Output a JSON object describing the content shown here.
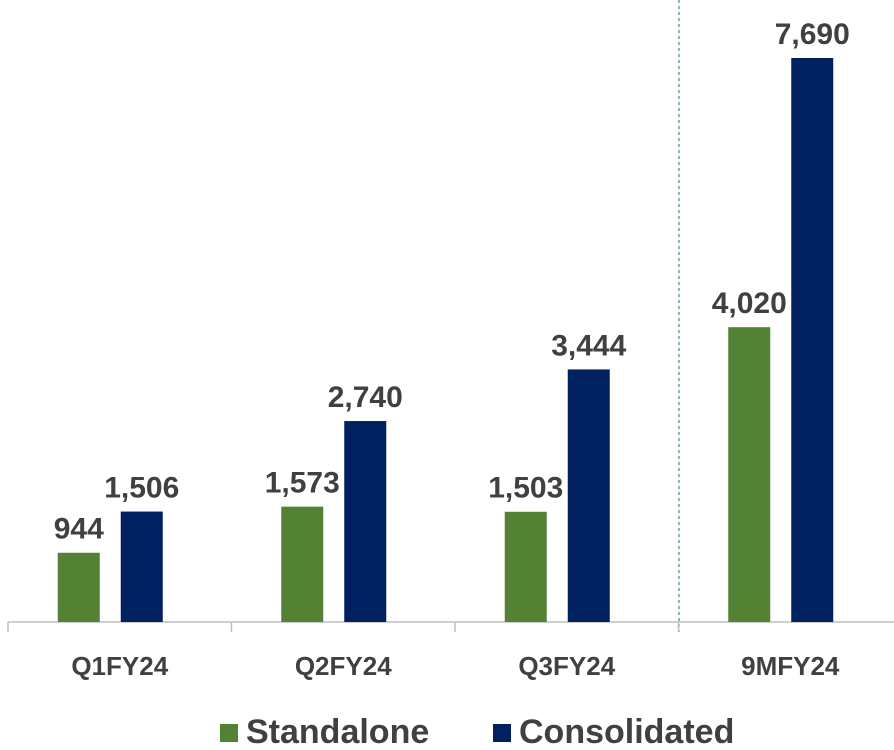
{
  "chart_data": {
    "type": "bar",
    "categories": [
      "Q1FY24",
      "Q2FY24",
      "Q3FY24",
      "9MFY24"
    ],
    "series": [
      {
        "name": "Standalone",
        "color": "#548235",
        "values": [
          944,
          1573,
          1503,
          4020
        ],
        "value_labels": [
          "944",
          "1,573",
          "1,503",
          "4,020"
        ]
      },
      {
        "name": "Consolidated",
        "color": "#002060",
        "values": [
          1506,
          2740,
          3444,
          7690
        ],
        "value_labels": [
          "1,506",
          "2,740",
          "3,444",
          "7,690"
        ]
      }
    ]
  }
}
